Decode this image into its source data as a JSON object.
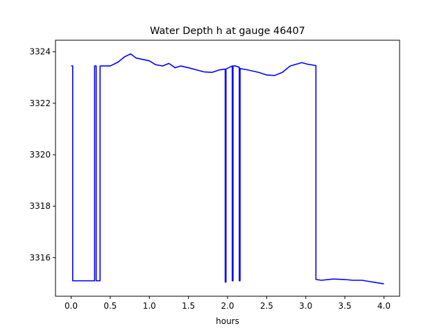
{
  "chart_data": {
    "type": "line",
    "title": "Water Depth h at gauge 46407",
    "xlabel": "hours",
    "ylabel": "",
    "xlim": [
      -0.2,
      4.2
    ],
    "ylim": [
      3314.5,
      3324.45
    ],
    "xticks": [
      0.0,
      0.5,
      1.0,
      1.5,
      2.0,
      2.5,
      3.0,
      3.5,
      4.0
    ],
    "xtick_labels": [
      "0.0",
      "0.5",
      "1.0",
      "1.5",
      "2.0",
      "2.5",
      "3.0",
      "3.5",
      "4.0"
    ],
    "yticks": [
      3316,
      3318,
      3320,
      3322,
      3324
    ],
    "ytick_labels": [
      "3316",
      "3318",
      "3320",
      "3322",
      "3324"
    ],
    "grid": false,
    "colors": {
      "line": "#0000ff",
      "axes": "#000000",
      "background": "#ffffff"
    },
    "series": [
      {
        "x": [
          0.0,
          0.02,
          0.02,
          0.3,
          0.3,
          0.32,
          0.32,
          0.37,
          0.37,
          0.5,
          0.6,
          0.68,
          0.76,
          0.83,
          0.92,
          1.0,
          1.08,
          1.17,
          1.25,
          1.33,
          1.4,
          1.5,
          1.6,
          1.7,
          1.8,
          1.9,
          1.97,
          1.97,
          1.98,
          1.98,
          2.06,
          2.06,
          2.07,
          2.07,
          2.1,
          2.15,
          2.15,
          2.16,
          2.16,
          2.25,
          2.4,
          2.5,
          2.6,
          2.7,
          2.8,
          2.95,
          3.02,
          3.1,
          3.13,
          3.13,
          3.2,
          3.35,
          3.5,
          3.6,
          3.72,
          3.8,
          3.9,
          4.0
        ],
        "y": [
          3323.45,
          3323.45,
          3315.1,
          3315.1,
          3323.45,
          3323.45,
          3315.1,
          3315.1,
          3323.45,
          3323.45,
          3323.6,
          3323.8,
          3323.92,
          3323.76,
          3323.7,
          3323.65,
          3323.5,
          3323.45,
          3323.55,
          3323.38,
          3323.45,
          3323.38,
          3323.3,
          3323.22,
          3323.2,
          3323.3,
          3323.33,
          3315.05,
          3315.05,
          3323.33,
          3323.45,
          3315.1,
          3315.1,
          3323.45,
          3323.45,
          3323.4,
          3315.1,
          3315.1,
          3323.35,
          3323.3,
          3323.2,
          3323.1,
          3323.08,
          3323.2,
          3323.45,
          3323.58,
          3323.52,
          3323.48,
          3323.46,
          3315.15,
          3315.12,
          3315.17,
          3315.15,
          3315.12,
          3315.12,
          3315.08,
          3315.03,
          3314.98
        ]
      }
    ]
  }
}
